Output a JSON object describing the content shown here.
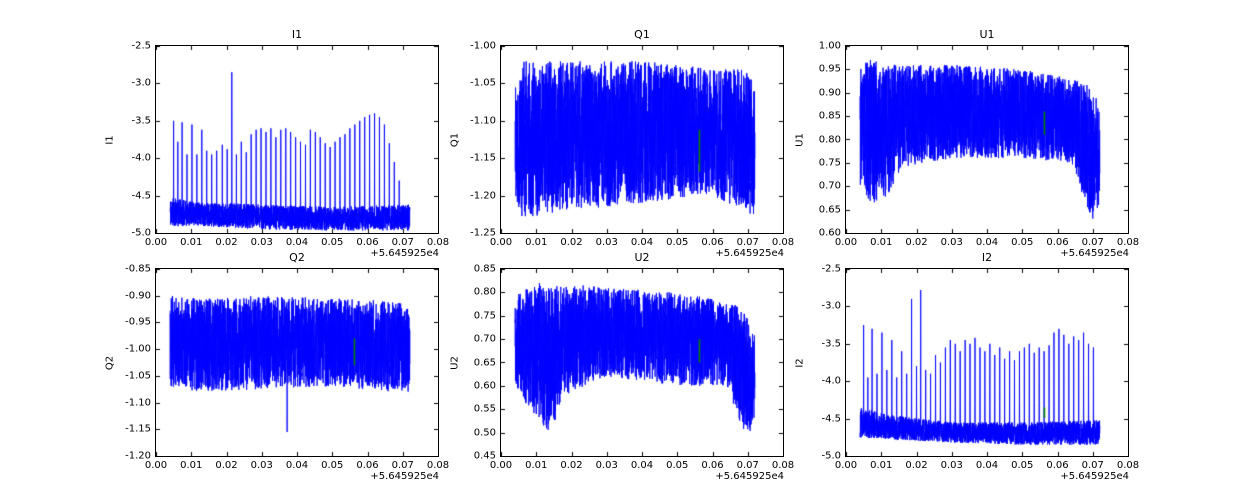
{
  "figure": {
    "background": "#ffffff",
    "line_color": "#0000ff",
    "marker_color": "#008000",
    "axis_color": "#000000",
    "x_offset_label": "+5.645925e4"
  },
  "chart_data": [
    {
      "id": "I1",
      "type": "line",
      "title": "I1",
      "ylabel": "I1",
      "xlim": [
        0.0,
        0.08
      ],
      "ylim": [
        -5.0,
        -2.5
      ],
      "xticks": [
        "0.00",
        "0.01",
        "0.02",
        "0.03",
        "0.04",
        "0.05",
        "0.06",
        "0.07",
        "0.08"
      ],
      "yticks": [
        "-2.5",
        "-3.0",
        "-3.5",
        "-4.0",
        "-4.5",
        "-5.0"
      ],
      "x_offset": "+5.645925e4",
      "series": {
        "kind": "spiky-baseline",
        "seed": 11,
        "n": 2600,
        "x_range": [
          0.004,
          0.072
        ],
        "envelope": [
          [
            0.004,
            -4.92,
            -4.52
          ],
          [
            0.01,
            -4.9,
            -4.58
          ],
          [
            0.03,
            -4.95,
            -4.62
          ],
          [
            0.05,
            -4.97,
            -4.65
          ],
          [
            0.072,
            -4.97,
            -4.62
          ]
        ],
        "spikes": [
          [
            0.005,
            -3.5
          ],
          [
            0.0062,
            -3.78
          ],
          [
            0.0074,
            -3.52
          ],
          [
            0.0088,
            -3.95
          ],
          [
            0.0102,
            -3.55
          ],
          [
            0.0116,
            -3.95
          ],
          [
            0.013,
            -3.62
          ],
          [
            0.0144,
            -3.9
          ],
          [
            0.0158,
            -3.95
          ],
          [
            0.0172,
            -3.9
          ],
          [
            0.0188,
            -3.82
          ],
          [
            0.0202,
            -3.88
          ],
          [
            0.0215,
            -2.85
          ],
          [
            0.0228,
            -3.95
          ],
          [
            0.0242,
            -3.78
          ],
          [
            0.0256,
            -3.92
          ],
          [
            0.027,
            -3.68
          ],
          [
            0.0284,
            -3.62
          ],
          [
            0.0298,
            -3.6
          ],
          [
            0.0312,
            -3.65
          ],
          [
            0.0326,
            -3.6
          ],
          [
            0.034,
            -3.72
          ],
          [
            0.0354,
            -3.62
          ],
          [
            0.0368,
            -3.6
          ],
          [
            0.0382,
            -3.65
          ],
          [
            0.0396,
            -3.72
          ],
          [
            0.041,
            -3.78
          ],
          [
            0.0424,
            -3.82
          ],
          [
            0.0438,
            -3.62
          ],
          [
            0.0452,
            -3.65
          ],
          [
            0.0466,
            -3.72
          ],
          [
            0.048,
            -3.8
          ],
          [
            0.0494,
            -3.85
          ],
          [
            0.0508,
            -3.78
          ],
          [
            0.0522,
            -3.72
          ],
          [
            0.0536,
            -3.68
          ],
          [
            0.055,
            -3.6
          ],
          [
            0.0564,
            -3.55
          ],
          [
            0.0578,
            -3.5
          ],
          [
            0.0592,
            -3.45
          ],
          [
            0.0606,
            -3.42
          ],
          [
            0.062,
            -3.4
          ],
          [
            0.0634,
            -3.45
          ],
          [
            0.0648,
            -3.55
          ],
          [
            0.0662,
            -3.8
          ],
          [
            0.0676,
            -4.05
          ],
          [
            0.069,
            -4.3
          ]
        ]
      },
      "marker": null
    },
    {
      "id": "Q1",
      "type": "line",
      "title": "Q1",
      "ylabel": "Q1",
      "xlim": [
        0.0,
        0.08
      ],
      "ylim": [
        -1.25,
        -1.0
      ],
      "xticks": [
        "0.00",
        "0.01",
        "0.02",
        "0.03",
        "0.04",
        "0.05",
        "0.06",
        "0.07",
        "0.08"
      ],
      "yticks": [
        "-1.00",
        "-1.05",
        "-1.10",
        "-1.15",
        "-1.20",
        "-1.25"
      ],
      "x_offset": "+5.645925e4",
      "series": {
        "kind": "noise-band",
        "seed": 22,
        "n": 2600,
        "x_range": [
          0.004,
          0.072
        ],
        "envelope": [
          [
            0.004,
            -1.2,
            -1.04
          ],
          [
            0.006,
            -1.23,
            -1.02
          ],
          [
            0.02,
            -1.22,
            -1.02
          ],
          [
            0.04,
            -1.21,
            -1.02
          ],
          [
            0.06,
            -1.2,
            -1.03
          ],
          [
            0.069,
            -1.22,
            -1.03
          ],
          [
            0.072,
            -1.23,
            -1.05
          ]
        ],
        "spikes": []
      },
      "marker": {
        "x": 0.0563,
        "y": -1.14,
        "yerr": 0.028
      }
    },
    {
      "id": "U1",
      "type": "line",
      "title": "U1",
      "ylabel": "U1",
      "xlim": [
        0.0,
        0.08
      ],
      "ylim": [
        0.6,
        1.0
      ],
      "xticks": [
        "0.00",
        "0.01",
        "0.02",
        "0.03",
        "0.04",
        "0.05",
        "0.06",
        "0.07",
        "0.08"
      ],
      "yticks": [
        "1.00",
        "0.95",
        "0.90",
        "0.85",
        "0.80",
        "0.75",
        "0.70",
        "0.65",
        "0.60"
      ],
      "x_offset": "+5.645925e4",
      "series": {
        "kind": "noise-band",
        "seed": 33,
        "n": 2600,
        "x_range": [
          0.004,
          0.072
        ],
        "envelope": [
          [
            0.004,
            0.7,
            0.96
          ],
          [
            0.007,
            0.66,
            0.97
          ],
          [
            0.012,
            0.68,
            0.96
          ],
          [
            0.016,
            0.74,
            0.96
          ],
          [
            0.03,
            0.76,
            0.96
          ],
          [
            0.05,
            0.76,
            0.95
          ],
          [
            0.064,
            0.75,
            0.93
          ],
          [
            0.068,
            0.66,
            0.92
          ],
          [
            0.07,
            0.63,
            0.9
          ],
          [
            0.072,
            0.66,
            0.88
          ]
        ],
        "spikes": []
      },
      "marker": {
        "x": 0.0563,
        "y": 0.835,
        "yerr": 0.025
      }
    },
    {
      "id": "Q2",
      "type": "line",
      "title": "Q2",
      "ylabel": "Q2",
      "xlim": [
        0.0,
        0.08
      ],
      "ylim": [
        -1.2,
        -0.85
      ],
      "xticks": [
        "0.00",
        "0.01",
        "0.02",
        "0.03",
        "0.04",
        "0.05",
        "0.06",
        "0.07",
        "0.08"
      ],
      "yticks": [
        "-0.85",
        "-0.90",
        "-0.95",
        "-1.00",
        "-1.05",
        "-1.10",
        "-1.15",
        "-1.20"
      ],
      "x_offset": "+5.645925e4",
      "series": {
        "kind": "noise-band",
        "seed": 44,
        "n": 2600,
        "x_range": [
          0.004,
          0.072
        ],
        "envelope": [
          [
            0.004,
            -1.07,
            -0.9
          ],
          [
            0.01,
            -1.08,
            -0.905
          ],
          [
            0.03,
            -1.075,
            -0.9
          ],
          [
            0.05,
            -1.07,
            -0.905
          ],
          [
            0.068,
            -1.08,
            -0.91
          ],
          [
            0.072,
            -1.08,
            -0.92
          ]
        ],
        "spikes": [
          [
            0.0372,
            -1.155
          ]
        ]
      },
      "marker": {
        "x": 0.0563,
        "y": -1.005,
        "yerr": 0.025
      }
    },
    {
      "id": "U2",
      "type": "line",
      "title": "U2",
      "ylabel": "U2",
      "xlim": [
        0.0,
        0.08
      ],
      "ylim": [
        0.45,
        0.85
      ],
      "xticks": [
        "0.00",
        "0.01",
        "0.02",
        "0.03",
        "0.04",
        "0.05",
        "0.06",
        "0.07",
        "0.08"
      ],
      "yticks": [
        "0.85",
        "0.80",
        "0.75",
        "0.70",
        "0.65",
        "0.60",
        "0.55",
        "0.50",
        "0.45"
      ],
      "x_offset": "+5.645925e4",
      "series": {
        "kind": "noise-band",
        "seed": 55,
        "n": 2600,
        "x_range": [
          0.004,
          0.072
        ],
        "envelope": [
          [
            0.004,
            0.6,
            0.79
          ],
          [
            0.007,
            0.56,
            0.81
          ],
          [
            0.011,
            0.52,
            0.82
          ],
          [
            0.014,
            0.5,
            0.81
          ],
          [
            0.018,
            0.58,
            0.82
          ],
          [
            0.03,
            0.62,
            0.81
          ],
          [
            0.05,
            0.6,
            0.8
          ],
          [
            0.064,
            0.6,
            0.78
          ],
          [
            0.068,
            0.52,
            0.77
          ],
          [
            0.07,
            0.49,
            0.75
          ],
          [
            0.072,
            0.53,
            0.72
          ]
        ],
        "spikes": []
      },
      "marker": {
        "x": 0.0563,
        "y": 0.675,
        "yerr": 0.025
      }
    },
    {
      "id": "I2",
      "type": "line",
      "title": "I2",
      "ylabel": "I2",
      "xlim": [
        0.0,
        0.08
      ],
      "ylim": [
        -5.0,
        -2.5
      ],
      "xticks": [
        "0.00",
        "0.01",
        "0.02",
        "0.03",
        "0.04",
        "0.05",
        "0.06",
        "0.07",
        "0.08"
      ],
      "yticks": [
        "-2.5",
        "-3.0",
        "-3.5",
        "-4.0",
        "-4.5",
        "-5.0"
      ],
      "x_offset": "+5.645925e4",
      "series": {
        "kind": "spiky-baseline",
        "seed": 66,
        "n": 2600,
        "x_range": [
          0.004,
          0.072
        ],
        "envelope": [
          [
            0.004,
            -4.75,
            -4.35
          ],
          [
            0.012,
            -4.78,
            -4.45
          ],
          [
            0.03,
            -4.82,
            -4.55
          ],
          [
            0.05,
            -4.85,
            -4.55
          ],
          [
            0.072,
            -4.85,
            -4.52
          ]
        ],
        "spikes": [
          [
            0.005,
            -3.25
          ],
          [
            0.0062,
            -3.95
          ],
          [
            0.0074,
            -3.3
          ],
          [
            0.0088,
            -3.9
          ],
          [
            0.0102,
            -3.35
          ],
          [
            0.0116,
            -3.85
          ],
          [
            0.013,
            -3.45
          ],
          [
            0.0144,
            -3.95
          ],
          [
            0.0158,
            -3.6
          ],
          [
            0.0172,
            -3.9
          ],
          [
            0.0186,
            -2.9
          ],
          [
            0.02,
            -3.8
          ],
          [
            0.0212,
            -2.78
          ],
          [
            0.0226,
            -3.85
          ],
          [
            0.024,
            -3.9
          ],
          [
            0.0254,
            -3.65
          ],
          [
            0.0268,
            -3.75
          ],
          [
            0.0282,
            -3.55
          ],
          [
            0.0296,
            -3.45
          ],
          [
            0.031,
            -3.5
          ],
          [
            0.0324,
            -3.6
          ],
          [
            0.0338,
            -3.45
          ],
          [
            0.0352,
            -3.5
          ],
          [
            0.0366,
            -3.42
          ],
          [
            0.038,
            -3.55
          ],
          [
            0.0394,
            -3.6
          ],
          [
            0.0408,
            -3.5
          ],
          [
            0.0422,
            -3.65
          ],
          [
            0.0436,
            -3.55
          ],
          [
            0.045,
            -3.7
          ],
          [
            0.0464,
            -3.6
          ],
          [
            0.0478,
            -3.72
          ],
          [
            0.0492,
            -3.6
          ],
          [
            0.0506,
            -3.55
          ],
          [
            0.052,
            -3.5
          ],
          [
            0.0534,
            -3.62
          ],
          [
            0.0548,
            -3.55
          ],
          [
            0.0562,
            -3.6
          ],
          [
            0.0576,
            -3.52
          ],
          [
            0.059,
            -3.35
          ],
          [
            0.0604,
            -3.3
          ],
          [
            0.0618,
            -3.38
          ],
          [
            0.0632,
            -3.5
          ],
          [
            0.0646,
            -3.4
          ],
          [
            0.066,
            -3.45
          ],
          [
            0.0674,
            -3.35
          ],
          [
            0.0688,
            -3.5
          ],
          [
            0.0702,
            -3.55
          ]
        ]
      },
      "marker": {
        "x": 0.0563,
        "y": -4.42,
        "yerr": 0.07
      }
    }
  ]
}
